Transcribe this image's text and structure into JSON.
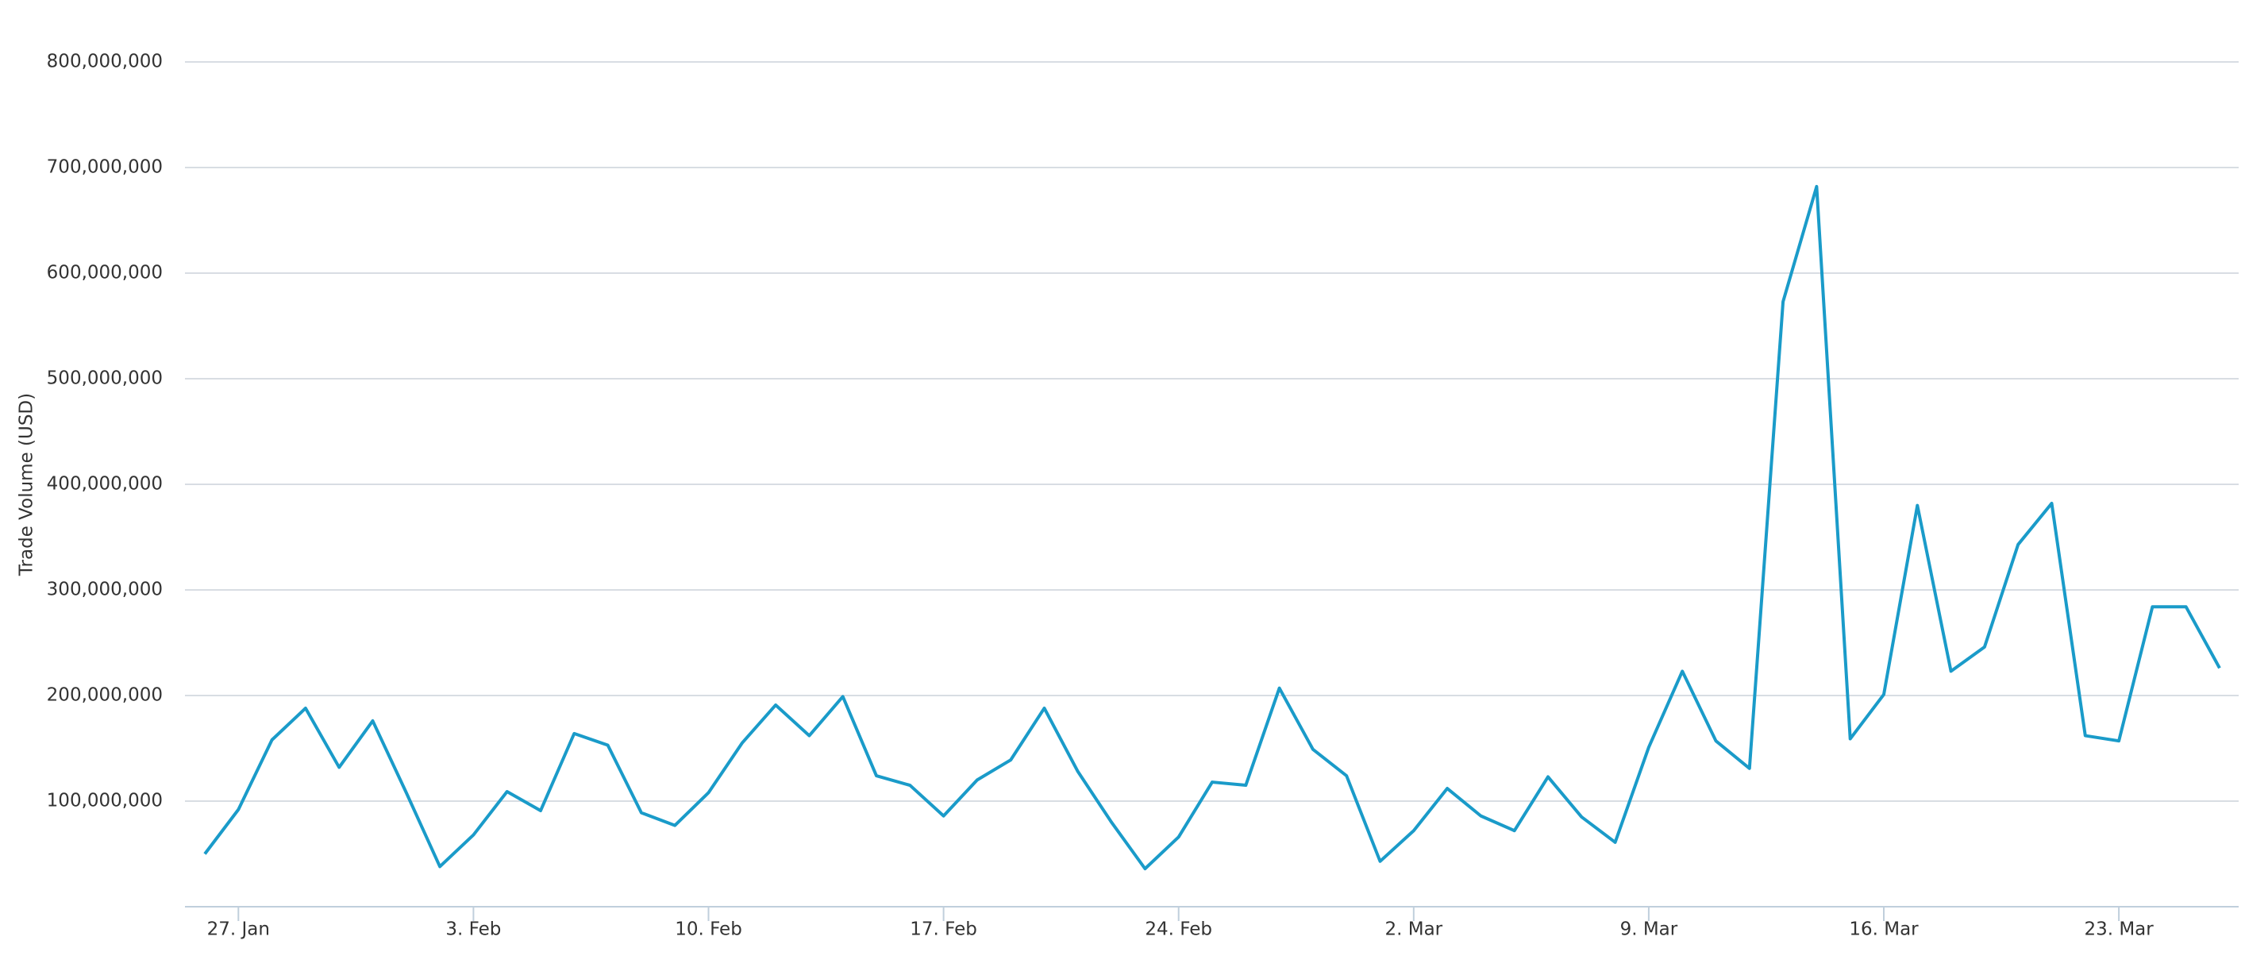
{
  "chart_data": {
    "type": "line",
    "y_label": "Trade Volume (USD)",
    "categories": [
      null,
      "27. Jan",
      null,
      null,
      null,
      null,
      null,
      null,
      "3. Feb",
      null,
      null,
      null,
      null,
      null,
      null,
      "10. Feb",
      null,
      null,
      null,
      null,
      null,
      null,
      "17. Feb",
      null,
      null,
      null,
      null,
      null,
      null,
      "24. Feb",
      null,
      null,
      null,
      null,
      null,
      null,
      "2. Mar",
      null,
      null,
      null,
      null,
      null,
      null,
      "9. Mar",
      null,
      null,
      null,
      null,
      null,
      null,
      "16. Mar",
      null,
      null,
      null,
      null,
      null,
      null,
      "23. Mar",
      null,
      null,
      null
    ],
    "series": [
      {
        "name": "Trade Volume",
        "color": "#1a9bc9",
        "values": [
          50000000,
          92000000,
          158000000,
          188000000,
          132000000,
          176000000,
          108000000,
          38000000,
          68000000,
          109000000,
          91000000,
          164000000,
          153000000,
          89000000,
          77000000,
          108000000,
          155000000,
          191000000,
          162000000,
          199000000,
          124000000,
          115000000,
          86000000,
          120000000,
          139000000,
          188000000,
          128000000,
          80000000,
          36000000,
          66000000,
          118000000,
          115000000,
          207000000,
          149000000,
          124000000,
          43000000,
          72000000,
          112000000,
          86000000,
          72000000,
          123000000,
          85000000,
          61000000,
          151000000,
          223000000,
          157000000,
          131000000,
          573000000,
          682000000,
          159000000,
          201000000,
          380000000,
          223000000,
          246000000,
          343000000,
          382000000,
          162000000,
          157000000,
          284000000,
          284000000,
          226000000
        ]
      }
    ],
    "ylim": [
      0,
      800000000
    ],
    "yticks": [
      {
        "value": 100000000,
        "label": "100,000,000"
      },
      {
        "value": 200000000,
        "label": "200,000,000"
      },
      {
        "value": 300000000,
        "label": "300,000,000"
      },
      {
        "value": 400000000,
        "label": "400,000,000"
      },
      {
        "value": 500000000,
        "label": "500,000,000"
      },
      {
        "value": 600000000,
        "label": "600,000,000"
      },
      {
        "value": 700000000,
        "label": "700,000,000"
      },
      {
        "value": 800000000,
        "label": "800,000,000"
      }
    ],
    "grid": true
  }
}
